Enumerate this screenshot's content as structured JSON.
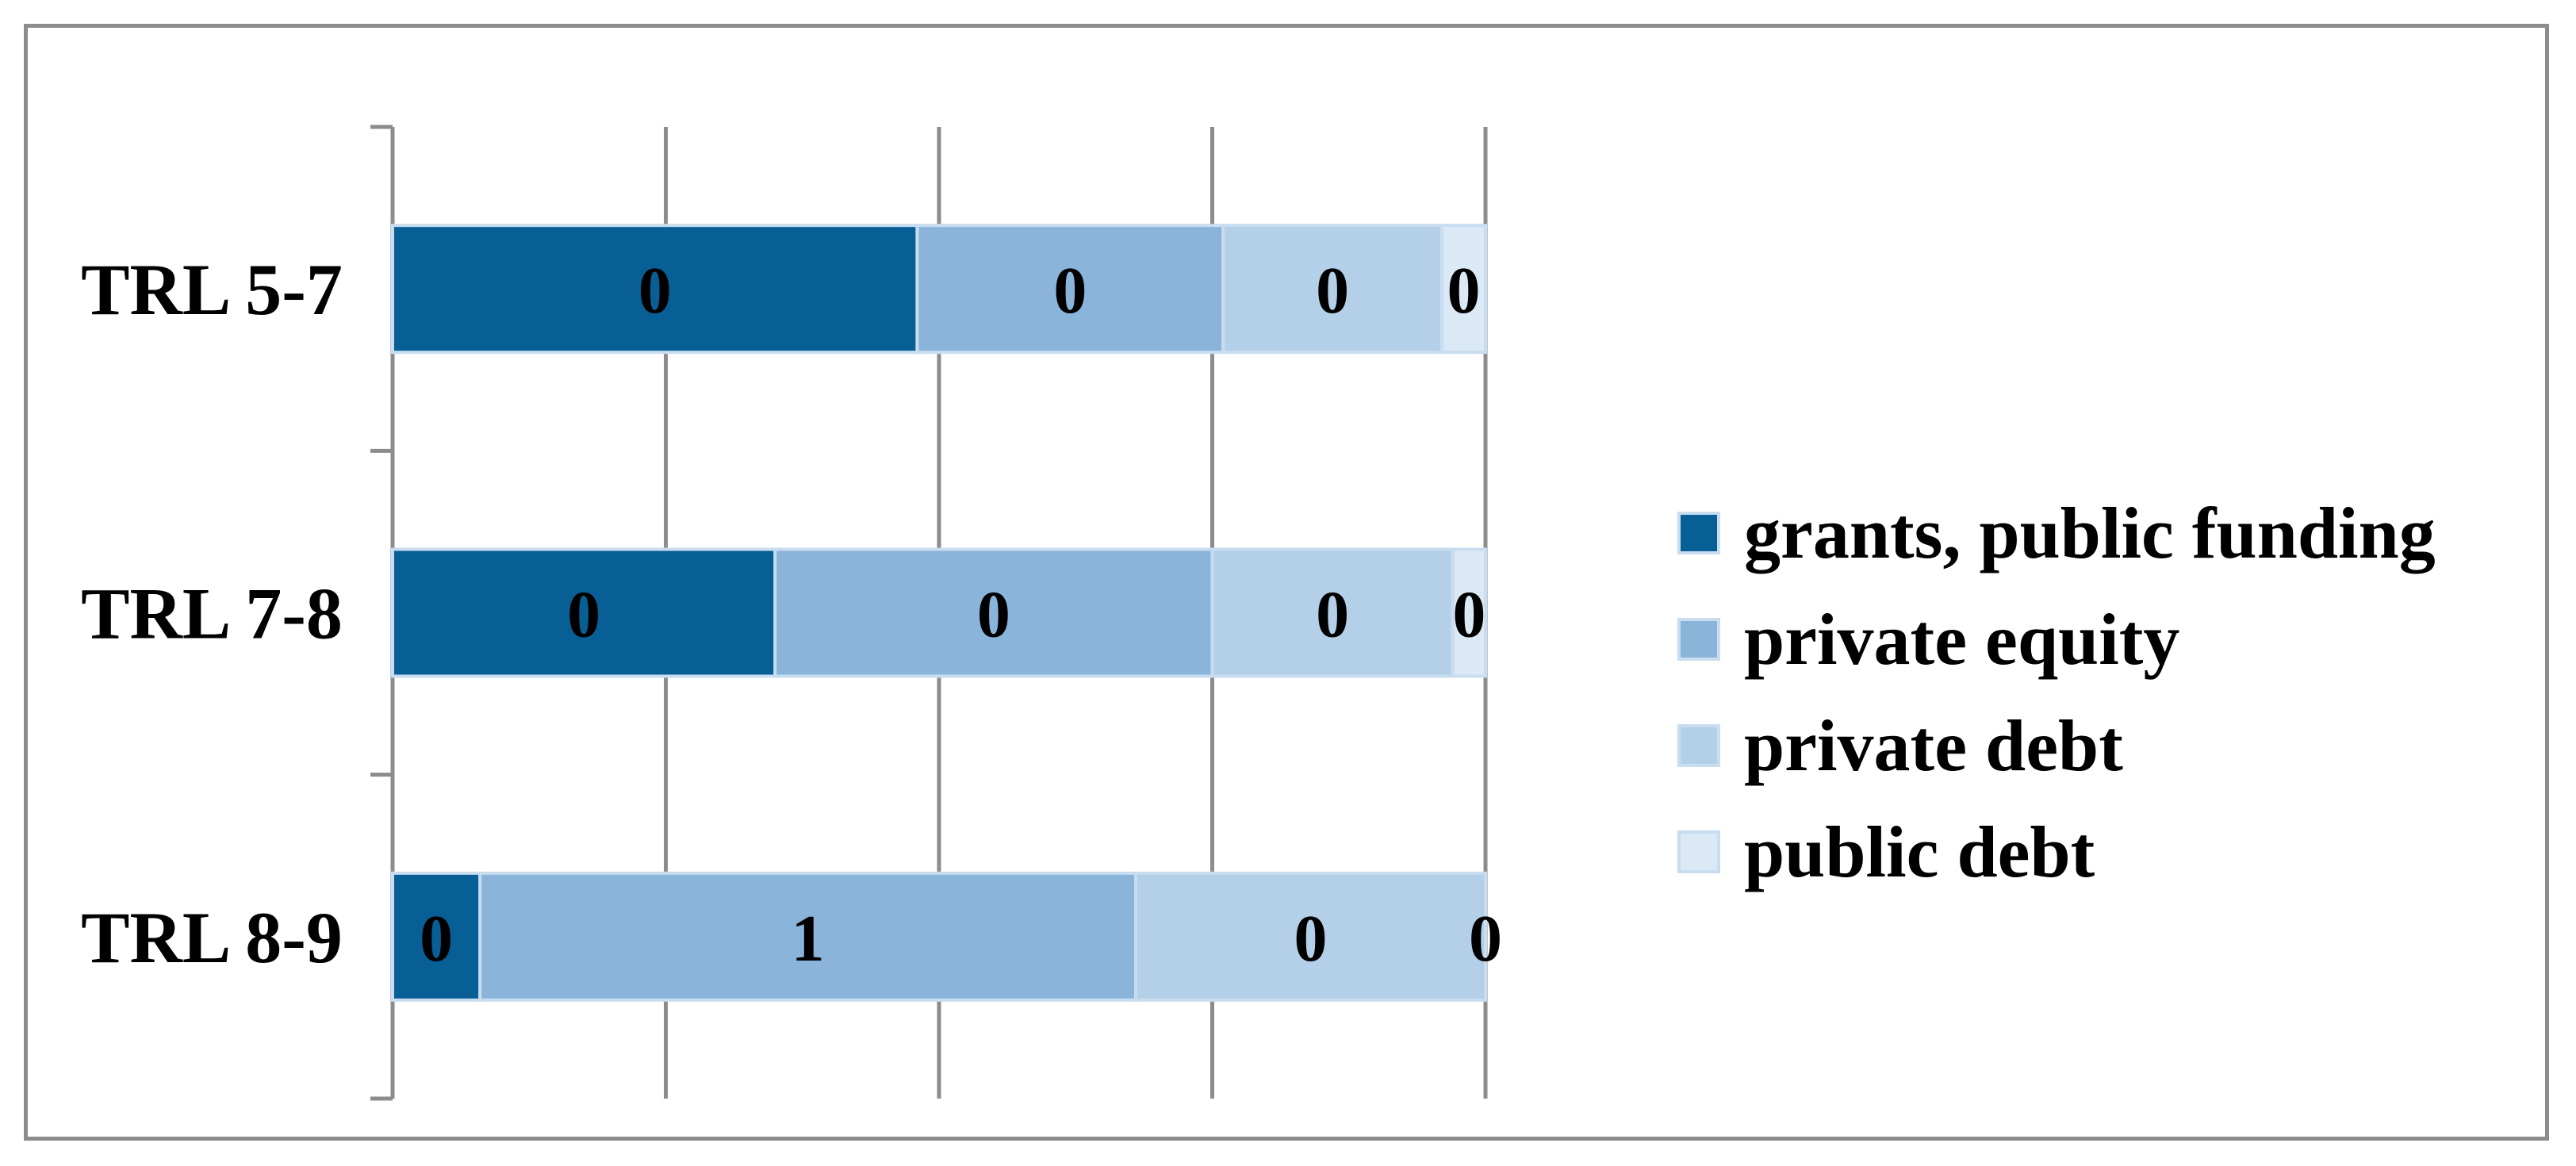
{
  "chart_data": {
    "type": "bar",
    "orientation": "horizontal",
    "stacked": true,
    "percent_stacked": true,
    "categories": [
      "TRL 5-7",
      "TRL 7-8",
      "TRL 8-9"
    ],
    "series": [
      {
        "name": "grants, public funding",
        "color": "#075f96",
        "values": [
          0.48,
          0.35,
          0.08
        ],
        "labels": [
          "0",
          "0",
          "0"
        ]
      },
      {
        "name": "private equity",
        "color": "#8ab4da",
        "values": [
          0.28,
          0.4,
          0.6
        ],
        "labels": [
          "0",
          "0",
          "1"
        ]
      },
      {
        "name": "private debt",
        "color": "#b4d0e8",
        "values": [
          0.2,
          0.22,
          0.32
        ],
        "labels": [
          "0",
          "0",
          "0"
        ]
      },
      {
        "name": "public debt",
        "color": "#dbe8f5",
        "values": [
          0.04,
          0.03,
          0.0
        ],
        "labels": [
          "0",
          "0",
          "0"
        ]
      }
    ],
    "xlim": [
      0,
      1
    ],
    "x_gridlines": [
      0,
      0.25,
      0.5,
      0.75,
      1
    ],
    "grid": true,
    "legend_position": "right"
  }
}
